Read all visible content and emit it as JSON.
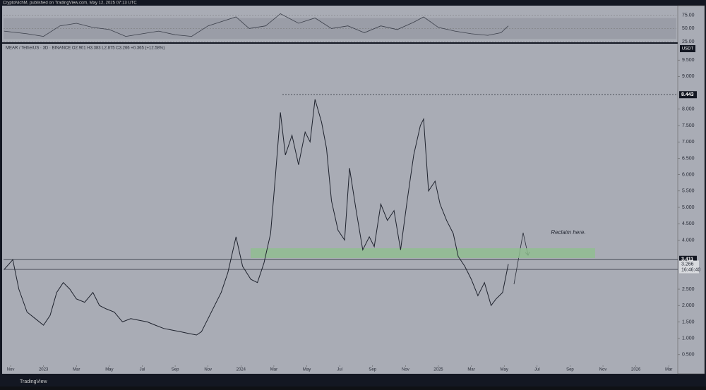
{
  "header": "CryptoNichM, published on TradingView.com, May 12, 2025 07:13 UTC",
  "symbol_line": "MEAR / TetherUS · 3D · BINANCE  O2.901  H3.383  L2.875  C3.266  +0.365 (+12.58%)",
  "footer": "TradingView",
  "chart_data": {
    "type": "line",
    "currency": "USDT",
    "annotation": "Reclaim here.",
    "countdown": "16:46:40",
    "xlim": [
      -0.43,
      40.46
    ],
    "xticks": [
      {
        "value": 0,
        "label": "Nov"
      },
      {
        "value": 2,
        "label": "2023"
      },
      {
        "value": 4,
        "label": "Mar"
      },
      {
        "value": 6,
        "label": "May"
      },
      {
        "value": 8,
        "label": "Jul"
      },
      {
        "value": 10,
        "label": "Sep"
      },
      {
        "value": 12,
        "label": "Nov"
      },
      {
        "value": 14,
        "label": "2024"
      },
      {
        "value": 16,
        "label": "Mar"
      },
      {
        "value": 18,
        "label": "May"
      },
      {
        "value": 20,
        "label": "Jul"
      },
      {
        "value": 22,
        "label": "Sep"
      },
      {
        "value": 24,
        "label": "Nov"
      },
      {
        "value": 26,
        "label": "2025"
      },
      {
        "value": 28,
        "label": "Mar"
      },
      {
        "value": 30,
        "label": "May"
      },
      {
        "value": 32,
        "label": "Jul"
      },
      {
        "value": 34,
        "label": "Sep"
      },
      {
        "value": 36,
        "label": "Nov"
      },
      {
        "value": 38,
        "label": "2026"
      },
      {
        "value": 40,
        "label": "Mar"
      }
    ],
    "ylim": [
      0.13,
      10
    ],
    "yticks": [
      {
        "value": 0.5,
        "label": "0.500"
      },
      {
        "value": 1,
        "label": "1.000"
      },
      {
        "value": 1.5,
        "label": "1.500"
      },
      {
        "value": 2,
        "label": "2.000"
      },
      {
        "value": 2.5,
        "label": "2.500"
      },
      {
        "value": 4,
        "label": "4.000"
      },
      {
        "value": 4.5,
        "label": "4.500"
      },
      {
        "value": 5,
        "label": "5.000"
      },
      {
        "value": 5.5,
        "label": "5.500"
      },
      {
        "value": 6,
        "label": "6.000"
      },
      {
        "value": 6.5,
        "label": "6.500"
      },
      {
        "value": 7,
        "label": "7.000"
      },
      {
        "value": 7.5,
        "label": "7.500"
      },
      {
        "value": 8,
        "label": "8.000"
      },
      {
        "value": 9,
        "label": "9.000"
      },
      {
        "value": 9.5,
        "label": "9.500"
      }
    ],
    "x": [
      -0.4,
      0.13,
      0.5,
      1.0,
      1.5,
      2.0,
      2.4,
      2.8,
      3.2,
      3.6,
      4.0,
      4.5,
      5.0,
      5.4,
      5.8,
      6.3,
      6.8,
      7.3,
      7.8,
      8.3,
      8.8,
      9.3,
      9.8,
      10.3,
      10.8,
      11.3,
      11.6,
      12.0,
      12.4,
      12.8,
      13.2,
      13.7,
      14.1,
      14.6,
      15.0,
      15.4,
      15.8,
      16.1,
      16.4,
      16.7,
      17.1,
      17.5,
      17.9,
      18.2,
      18.5,
      18.9,
      19.2,
      19.5,
      19.9,
      20.3,
      20.6,
      21.0,
      21.4,
      21.8,
      22.1,
      22.5,
      22.9,
      23.3,
      23.7,
      24.1,
      24.5,
      24.9,
      25.1,
      25.4,
      25.8,
      26.1,
      26.5,
      26.9,
      27.2,
      27.6,
      28.0,
      28.4,
      28.8,
      29.2,
      29.5,
      29.9,
      30.25
    ],
    "series": [
      {
        "color": "#1e222d",
        "values": [
          3.1,
          3.4,
          2.5,
          1.8,
          1.6,
          1.4,
          1.7,
          2.4,
          2.7,
          2.5,
          2.2,
          2.1,
          2.4,
          2.0,
          1.9,
          1.8,
          1.5,
          1.6,
          1.55,
          1.5,
          1.4,
          1.3,
          1.25,
          1.2,
          1.15,
          1.1,
          1.2,
          1.6,
          2.0,
          2.4,
          3.0,
          4.1,
          3.2,
          2.8,
          2.7,
          3.3,
          4.2,
          6.0,
          7.9,
          6.6,
          7.2,
          6.3,
          7.3,
          7.0,
          8.3,
          7.6,
          6.8,
          5.2,
          4.3,
          4.0,
          6.2,
          4.9,
          3.7,
          4.1,
          3.8,
          5.1,
          4.6,
          4.9,
          3.7,
          5.2,
          6.6,
          7.5,
          7.7,
          5.5,
          5.8,
          5.1,
          4.6,
          4.2,
          3.5,
          3.2,
          2.8,
          2.3,
          2.7,
          2.0,
          2.2,
          2.4,
          3.266
        ]
      }
    ],
    "levels": [
      8.443,
      3.411,
      3.104
    ],
    "zone": [
      3.45,
      3.75
    ],
    "rsi": {
      "ylim": [
        23.7,
        90.8
      ],
      "yticks": [
        {
          "value": 75,
          "label": "75.00"
        },
        {
          "value": 50,
          "label": "50.00"
        },
        {
          "value": 25,
          "label": "25.00"
        }
      ],
      "band": [
        30,
        70
      ],
      "color": "#3b3f4a",
      "x": [
        -0.4,
        1,
        2,
        3,
        4,
        5,
        6,
        7,
        8,
        9,
        10,
        11,
        12,
        13.7,
        14.5,
        15.5,
        16.4,
        17.5,
        18.5,
        19.5,
        20.5,
        21.5,
        22.5,
        23.5,
        24.5,
        25.1,
        26,
        27,
        28,
        29,
        29.8,
        30.25
      ],
      "values": [
        45,
        40,
        35,
        55,
        60,
        52,
        48,
        35,
        40,
        45,
        38,
        35,
        55,
        72,
        50,
        55,
        78,
        60,
        70,
        50,
        55,
        42,
        55,
        48,
        62,
        72,
        52,
        45,
        40,
        37,
        42,
        55
      ]
    }
  }
}
